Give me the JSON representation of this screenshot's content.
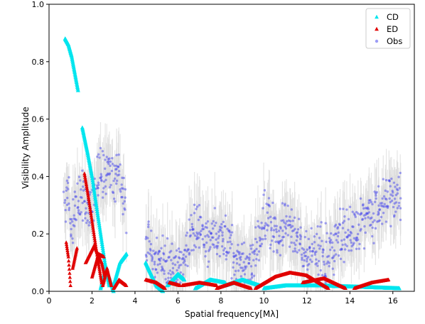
{
  "chart_data": {
    "type": "scatter",
    "title": "",
    "xlabel": "Spatial frequency[Mλ]",
    "ylabel": "Visibility Amplitude",
    "xlim": [
      0,
      17
    ],
    "ylim": [
      0,
      1.0
    ],
    "xticks": [
      "0",
      "2",
      "4",
      "6",
      "8",
      "10",
      "12",
      "14",
      "16"
    ],
    "yticks": [
      "0.0",
      "0.2",
      "0.4",
      "0.6",
      "0.8",
      "1.0"
    ],
    "grid": false,
    "legend_position": "top-right",
    "series": [
      {
        "name": "CD",
        "marker": "triangle",
        "color": "#00e5ee",
        "segments": [
          [
            [
              0.75,
              0.88
            ],
            [
              0.9,
              0.86
            ],
            [
              1.05,
              0.82
            ],
            [
              1.15,
              0.78
            ],
            [
              1.25,
              0.74
            ],
            [
              1.35,
              0.7
            ]
          ],
          [
            [
              1.55,
              0.57
            ],
            [
              1.8,
              0.48
            ],
            [
              2.0,
              0.4
            ],
            [
              2.2,
              0.3
            ],
            [
              2.4,
              0.2
            ],
            [
              2.6,
              0.1
            ],
            [
              2.8,
              0.02
            ]
          ],
          [
            [
              2.4,
              0.01
            ],
            [
              2.6,
              0.07
            ],
            [
              2.8,
              0.05
            ],
            [
              3.0,
              0.0
            ]
          ],
          [
            [
              3.0,
              0.02
            ],
            [
              3.3,
              0.1
            ],
            [
              3.6,
              0.13
            ]
          ],
          [
            [
              4.5,
              0.1
            ],
            [
              5.0,
              0.02
            ],
            [
              5.3,
              0.0
            ]
          ],
          [
            [
              5.5,
              0.02
            ],
            [
              6.0,
              0.06
            ],
            [
              6.3,
              0.04
            ]
          ],
          [
            [
              6.8,
              0.01
            ],
            [
              7.5,
              0.04
            ],
            [
              8.2,
              0.03
            ]
          ],
          [
            [
              8.2,
              0.02
            ],
            [
              9.0,
              0.04
            ],
            [
              9.8,
              0.02
            ]
          ],
          [
            [
              10.0,
              0.01
            ],
            [
              11.0,
              0.02
            ],
            [
              12.5,
              0.02
            ],
            [
              14.5,
              0.015
            ],
            [
              16.3,
              0.01
            ]
          ]
        ]
      },
      {
        "name": "ED",
        "marker": "triangle",
        "color": "#e00000",
        "segments": [
          [
            [
              0.8,
              0.17
            ],
            [
              0.9,
              0.12
            ],
            [
              1.0,
              0.02
            ]
          ],
          [
            [
              1.1,
              0.08
            ],
            [
              1.3,
              0.15
            ]
          ],
          [
            [
              1.65,
              0.41
            ],
            [
              1.85,
              0.32
            ],
            [
              2.05,
              0.22
            ],
            [
              2.25,
              0.12
            ],
            [
              2.45,
              0.03
            ]
          ],
          [
            [
              1.7,
              0.1
            ],
            [
              2.1,
              0.16
            ],
            [
              2.45,
              0.1
            ],
            [
              2.6,
              0.05
            ]
          ],
          [
            [
              2.0,
              0.05
            ],
            [
              2.3,
              0.13
            ],
            [
              2.55,
              0.12
            ]
          ],
          [
            [
              2.5,
              0.02
            ],
            [
              2.7,
              0.08
            ],
            [
              2.9,
              0.02
            ]
          ],
          [
            [
              3.0,
              0.01
            ],
            [
              3.25,
              0.04
            ],
            [
              3.6,
              0.02
            ]
          ],
          [
            [
              4.5,
              0.04
            ],
            [
              5.0,
              0.03
            ],
            [
              5.4,
              0.01
            ]
          ],
          [
            [
              5.6,
              0.03
            ],
            [
              6.1,
              0.02
            ]
          ],
          [
            [
              6.2,
              0.02
            ],
            [
              7.0,
              0.03
            ],
            [
              7.8,
              0.02
            ]
          ],
          [
            [
              7.8,
              0.01
            ],
            [
              8.6,
              0.03
            ],
            [
              9.4,
              0.01
            ]
          ],
          [
            [
              9.6,
              0.01
            ],
            [
              10.5,
              0.05
            ],
            [
              11.2,
              0.065
            ],
            [
              12.0,
              0.055
            ],
            [
              13.0,
              0.01
            ]
          ],
          [
            [
              11.8,
              0.03
            ],
            [
              12.8,
              0.045
            ],
            [
              13.8,
              0.01
            ]
          ],
          [
            [
              14.2,
              0.01
            ],
            [
              15.0,
              0.03
            ],
            [
              15.8,
              0.04
            ]
          ]
        ]
      },
      {
        "name": "Obs",
        "marker": "circle",
        "color": "#3a3aee",
        "envelope": [
          [
            0.7,
            0.3
          ],
          [
            0.9,
            0.36
          ],
          [
            1.0,
            0.21
          ],
          [
            1.2,
            0.27
          ],
          [
            1.4,
            0.32
          ],
          [
            1.6,
            0.34
          ],
          [
            1.8,
            0.26
          ],
          [
            2.0,
            0.32
          ],
          [
            2.2,
            0.38
          ],
          [
            2.4,
            0.42
          ],
          [
            2.6,
            0.4
          ],
          [
            2.8,
            0.44
          ],
          [
            3.0,
            0.38
          ],
          [
            3.2,
            0.42
          ],
          [
            3.4,
            0.35
          ],
          [
            3.6,
            0.3
          ],
          [
            4.5,
            0.16
          ],
          [
            4.8,
            0.13
          ],
          [
            5.1,
            0.11
          ],
          [
            5.4,
            0.09
          ],
          [
            5.7,
            0.1
          ],
          [
            6.0,
            0.07
          ],
          [
            6.5,
            0.16
          ],
          [
            6.8,
            0.24
          ],
          [
            7.1,
            0.2
          ],
          [
            7.4,
            0.17
          ],
          [
            7.7,
            0.21
          ],
          [
            8.0,
            0.19
          ],
          [
            8.3,
            0.16
          ],
          [
            8.6,
            0.13
          ],
          [
            8.9,
            0.1
          ],
          [
            9.2,
            0.08
          ],
          [
            9.5,
            0.11
          ],
          [
            9.8,
            0.2
          ],
          [
            10.1,
            0.27
          ],
          [
            10.4,
            0.22
          ],
          [
            10.7,
            0.19
          ],
          [
            11.0,
            0.24
          ],
          [
            11.3,
            0.2
          ],
          [
            11.6,
            0.16
          ],
          [
            11.9,
            0.13
          ],
          [
            12.2,
            0.12
          ],
          [
            12.5,
            0.15
          ],
          [
            12.8,
            0.13
          ],
          [
            13.1,
            0.15
          ],
          [
            13.4,
            0.18
          ],
          [
            13.7,
            0.19
          ],
          [
            14.0,
            0.21
          ],
          [
            14.3,
            0.23
          ],
          [
            14.6,
            0.25
          ],
          [
            14.9,
            0.27
          ],
          [
            15.2,
            0.28
          ],
          [
            15.5,
            0.3
          ],
          [
            15.8,
            0.32
          ],
          [
            16.1,
            0.33
          ],
          [
            16.4,
            0.34
          ]
        ],
        "spread": 0.08
      }
    ]
  }
}
